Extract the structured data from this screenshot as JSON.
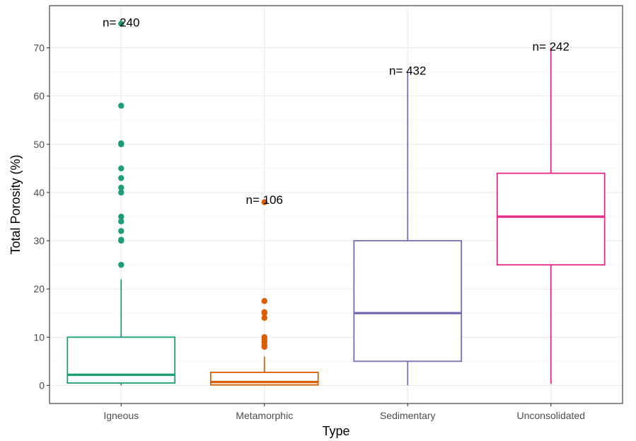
{
  "chart_data": {
    "type": "boxplot",
    "xlabel": "Type",
    "ylabel": "Total Porosity (%)",
    "categories": [
      "Igneous",
      "Metamorphic",
      "Sedimentary",
      "Unconsolidated"
    ],
    "colors": [
      "#1b9e77",
      "#d95f02",
      "#7570b3",
      "#e7298a"
    ],
    "ylim": [
      -3.75,
      78.75
    ],
    "yticks": [
      0,
      10,
      20,
      30,
      40,
      50,
      60,
      70
    ],
    "grid": true,
    "legend": "none",
    "boxes": [
      {
        "category": "Igneous",
        "min": 0,
        "q1": 0.5,
        "median": 2.2,
        "q3": 10,
        "max": 22,
        "outliers": [
          25,
          30,
          30.2,
          32,
          34,
          35,
          40,
          41,
          43,
          45,
          50,
          50.2,
          58,
          75
        ],
        "n_label": "n=  240",
        "n_label_y": 75.3
      },
      {
        "category": "Metamorphic",
        "min": 0,
        "q1": 0.1,
        "median": 0.7,
        "q3": 2.7,
        "max": 6,
        "outliers": [
          8,
          8.3,
          9,
          9.5,
          10,
          14,
          15,
          15.2,
          17.5,
          38
        ],
        "n_label": "n=  106",
        "n_label_y": 38.5
      },
      {
        "category": "Sedimentary",
        "min": 0,
        "q1": 5,
        "median": 15,
        "q3": 30,
        "max": 65,
        "outliers": [],
        "n_label": "n=  432",
        "n_label_y": 65.3
      },
      {
        "category": "Unconsolidated",
        "min": 0.3,
        "q1": 25,
        "median": 35,
        "q3": 44,
        "max": 70,
        "outliers": [],
        "n_label": "n=  242",
        "n_label_y": 70.3
      }
    ]
  }
}
